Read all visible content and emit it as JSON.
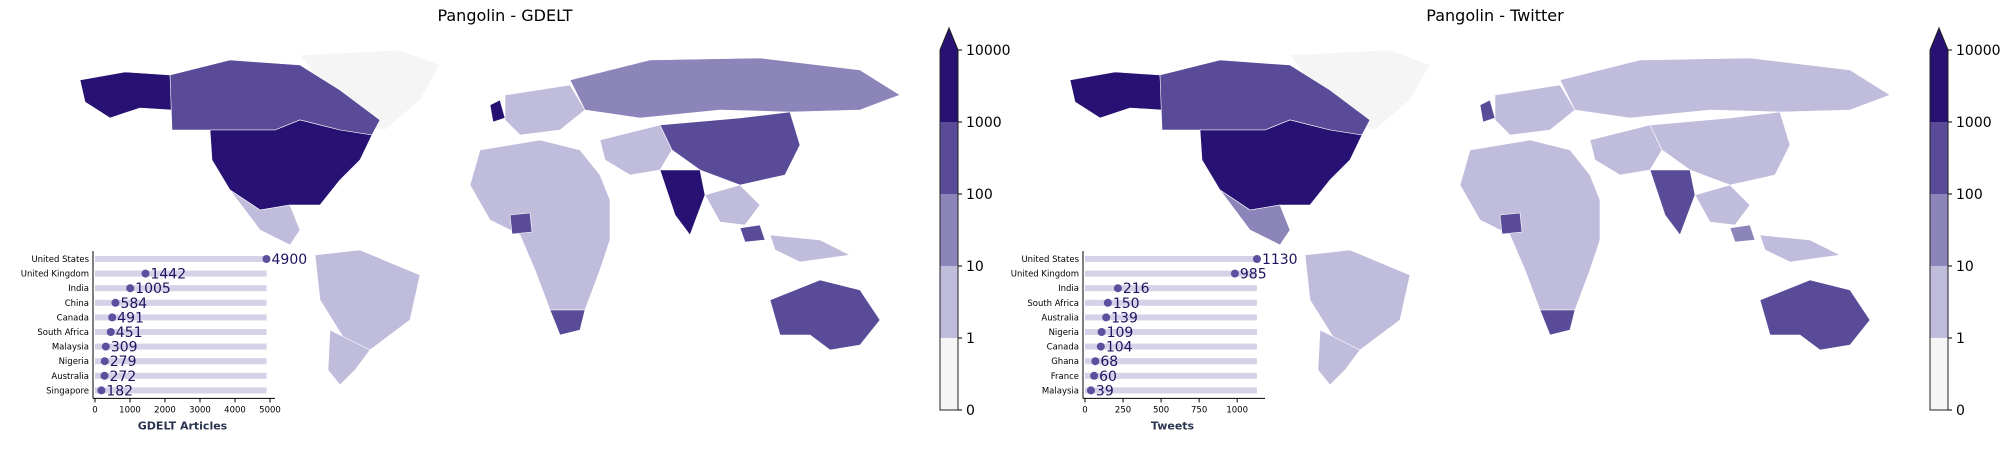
{
  "palette": {
    "bins": [
      "#f5f5f5",
      "#bfbcdc",
      "#8c85ba",
      "#5a4b99",
      "#271172"
    ],
    "bar_track": "#d4d1e8",
    "dot": "#5d4f9e",
    "label": "#22115f",
    "frame": "#222222"
  },
  "chart_data": [
    {
      "type": "choropleth",
      "title": "Pangolin - GDELT",
      "colorbar": {
        "scale": "log",
        "ticks": [
          "0",
          "1",
          "10",
          "100",
          "1000",
          "10000"
        ],
        "extend": "max"
      },
      "inset": {
        "type": "bar",
        "orientation": "horizontal",
        "xlabel": "GDELT Articles",
        "xticks": [
          "0",
          "1000",
          "2000",
          "3000",
          "4000",
          "5000"
        ],
        "xlim": [
          0,
          5000
        ],
        "track_value": 4900,
        "categories": [
          "United States",
          "United Kingdom",
          "India",
          "China",
          "Canada",
          "South Africa",
          "Malaysia",
          "Nigeria",
          "Australia",
          "Singapore"
        ],
        "values": [
          4900,
          1442,
          1005,
          584,
          491,
          451,
          309,
          279,
          272,
          182
        ]
      },
      "country_bins": {
        "United States": 4,
        "Canada": 3,
        "Alaska": 4,
        "Greenland": 0,
        "Mexico": 1,
        "Brazil": 1,
        "Argentina": 1,
        "United Kingdom": 4,
        "Russia": 2,
        "China": 3,
        "India": 4,
        "Australia": 3,
        "South Africa": 3,
        "Nigeria": 3,
        "Malaysia": 3
      }
    },
    {
      "type": "choropleth",
      "title": "Pangolin - Twitter",
      "colorbar": {
        "scale": "log",
        "ticks": [
          "0",
          "1",
          "10",
          "100",
          "1000",
          "10000"
        ],
        "extend": "max"
      },
      "inset": {
        "type": "bar",
        "orientation": "horizontal",
        "xlabel": "Tweets",
        "xticks": [
          "0",
          "250",
          "500",
          "750",
          "1000"
        ],
        "xlim": [
          0,
          1150
        ],
        "track_value": 1130,
        "categories": [
          "United States",
          "United Kingdom",
          "India",
          "South Africa",
          "Australia",
          "Nigeria",
          "Canada",
          "Ghana",
          "France",
          "Malaysia"
        ],
        "values": [
          1130,
          985,
          216,
          150,
          139,
          109,
          104,
          68,
          60,
          39
        ]
      },
      "country_bins": {
        "United States": 4,
        "Canada": 3,
        "Alaska": 4,
        "Greenland": 0,
        "Mexico": 2,
        "Brazil": 1,
        "Argentina": 1,
        "United Kingdom": 3,
        "Russia": 1,
        "China": 1,
        "India": 3,
        "Australia": 3,
        "South Africa": 3,
        "Nigeria": 3,
        "Malaysia": 2
      }
    }
  ]
}
